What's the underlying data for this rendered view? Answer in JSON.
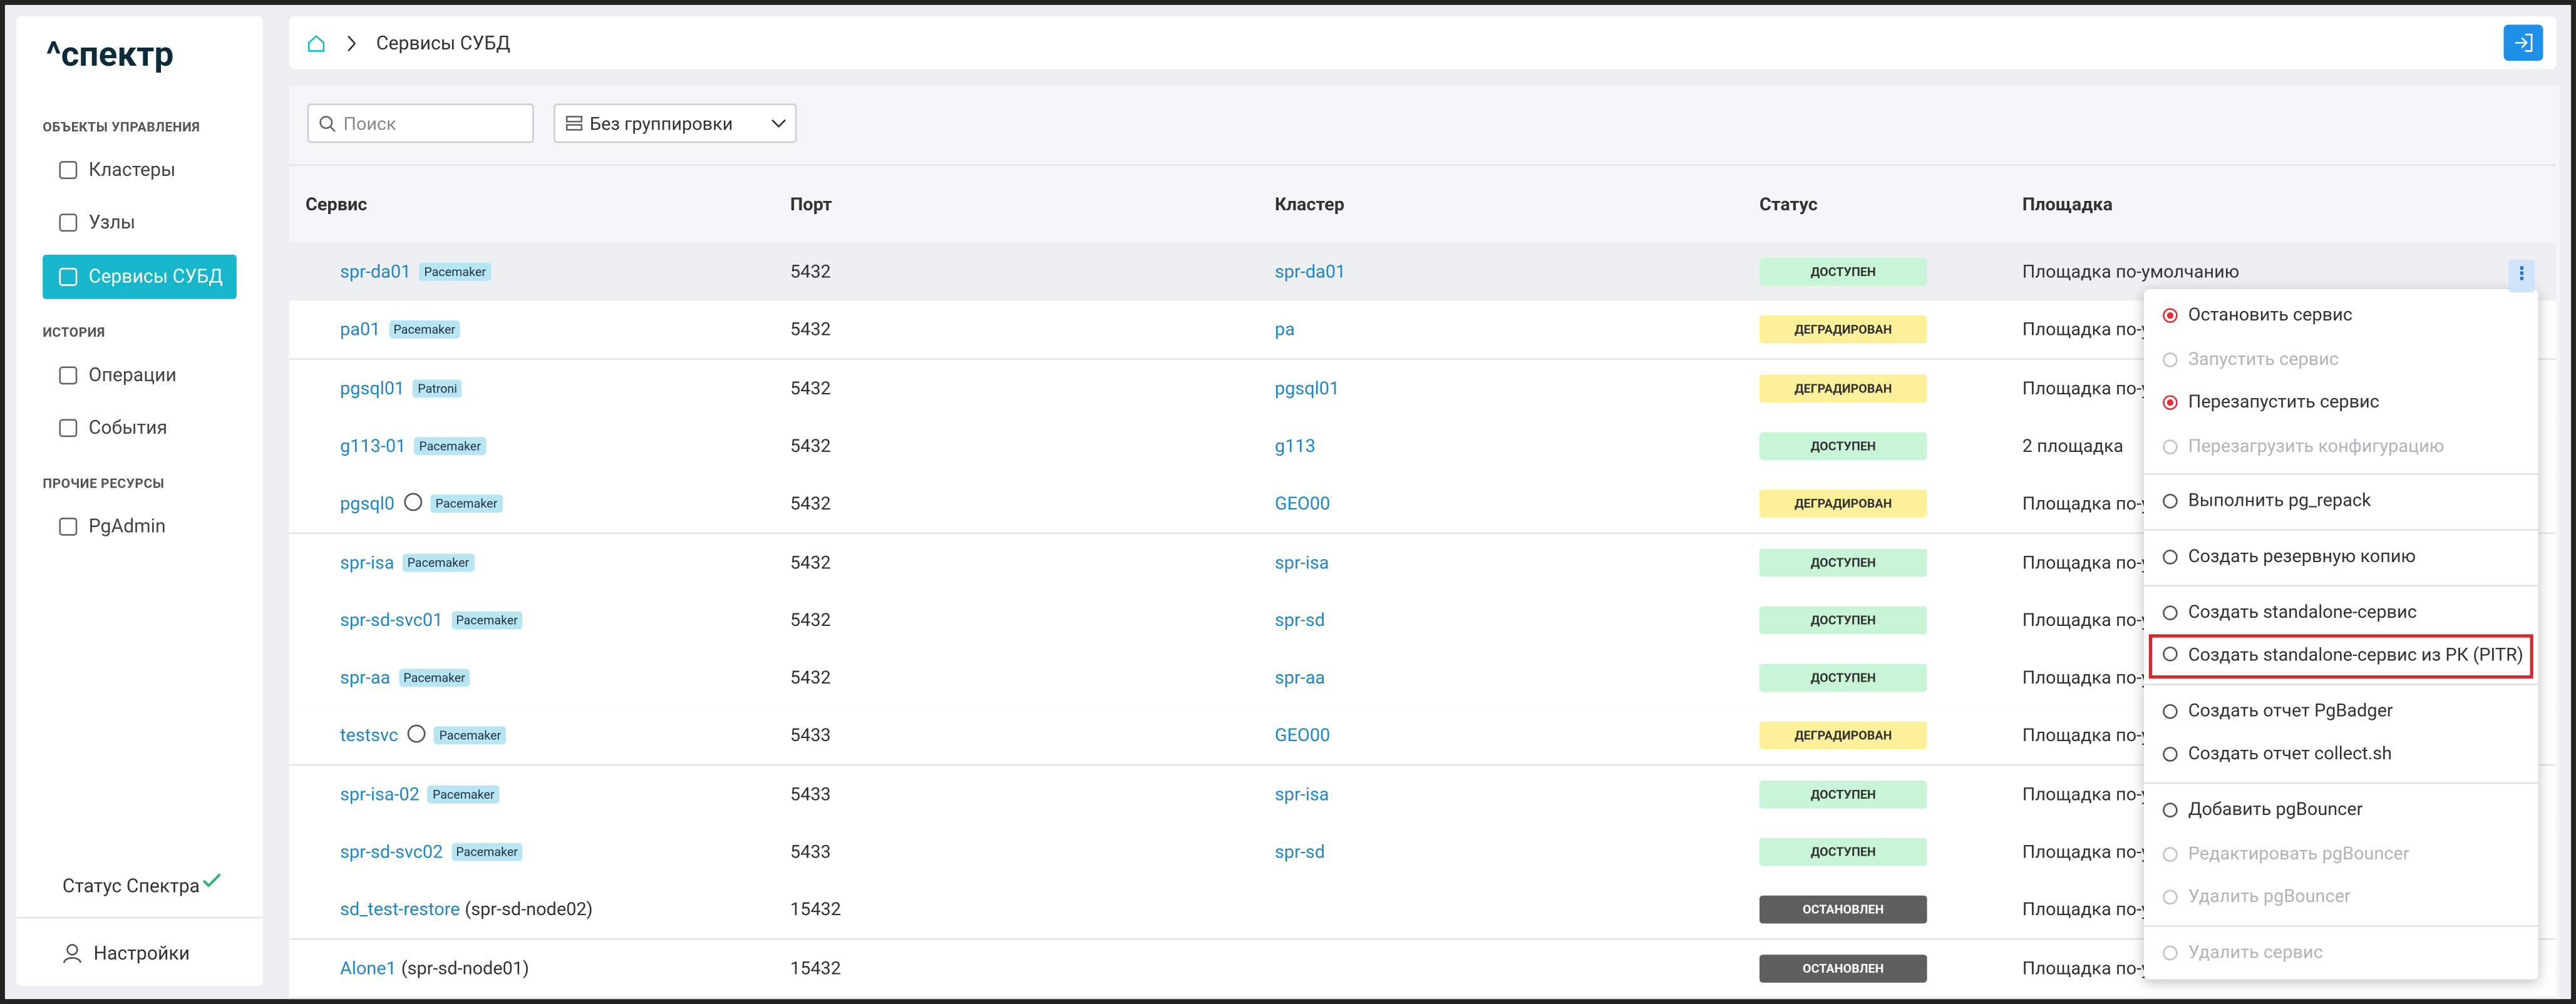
{
  "sidebar": {
    "logo": "^спектр",
    "sections": [
      {
        "title": "ОБЪЕКТЫ УПРАВЛЕНИЯ",
        "items": [
          "Кластеры",
          "Узлы",
          "Сервисы СУБД"
        ]
      },
      {
        "title": "ИСТОРИЯ",
        "items": [
          "Операции",
          "События"
        ]
      },
      {
        "title": "ПРОЧИЕ РЕСУРСЫ",
        "items": [
          "PgAdmin"
        ]
      }
    ],
    "status": "Статус Спектра",
    "settings": "Настройки"
  },
  "header": {
    "breadcrumb": "Сервисы СУБД"
  },
  "toolbar": {
    "search_placeholder": "Поиск",
    "grouping": "Без группировки"
  },
  "table": {
    "columns": [
      "Сервис",
      "Порт",
      "Кластер",
      "Статус",
      "Площадка"
    ],
    "rows": [
      {
        "name": "spr-da01",
        "tag": "Pacemaker",
        "port": "5432",
        "cluster": "spr-da01",
        "status": "ДОСТУПЕН",
        "status_color": "#c8f5d8",
        "site": "Площадка по-умолчанию"
      },
      {
        "name": "pa01",
        "tag": "Pacemaker",
        "port": "5432",
        "cluster": "pa",
        "status": "ДЕГРАДИРОВАН",
        "status_color": "#fdf09a",
        "site": "Площадка по-умолчанию"
      },
      {
        "name": "pgsql01",
        "tag": "Patroni",
        "port": "5432",
        "cluster": "pgsql01",
        "status": "ДЕГРАДИРОВАН",
        "status_color": "#fdf09a",
        "site": "Площадка по-умолчанию"
      },
      {
        "name": "g113-01",
        "tag": "Pacemaker",
        "port": "5432",
        "cluster": "g113",
        "status": "ДОСТУПЕН",
        "status_color": "#c8f5d8",
        "site": "2 площадка"
      },
      {
        "name": "pgsql0",
        "globe": true,
        "tag": "Pacemaker",
        "port": "5432",
        "cluster": "GEO00",
        "status": "ДЕГРАДИРОВАН",
        "status_color": "#fdf09a",
        "site": "Площадка по-умолчанию"
      },
      {
        "name": "spr-isa",
        "tag": "Pacemaker",
        "port": "5432",
        "cluster": "spr-isa",
        "status": "ДОСТУПЕН",
        "status_color": "#c8f5d8",
        "site": "Площадка по-умолчанию"
      },
      {
        "name": "spr-sd-svc01",
        "tag": "Pacemaker",
        "port": "5432",
        "cluster": "spr-sd",
        "status": "ДОСТУПЕН",
        "status_color": "#c8f5d8",
        "site": "Площадка по-умолчанию"
      },
      {
        "name": "spr-aa",
        "tag": "Pacemaker",
        "port": "5432",
        "cluster": "spr-aa",
        "status": "ДОСТУПЕН",
        "status_color": "#c8f5d8",
        "site": "Площадка по-умолчанию"
      },
      {
        "name": "testsvc",
        "globe": true,
        "tag": "Pacemaker",
        "port": "5433",
        "cluster": "GEO00",
        "status": "ДЕГРАДИРОВАН",
        "status_color": "#fdf09a",
        "site": "Площадка по-умолчанию"
      },
      {
        "name": "spr-isa-02",
        "tag": "Pacemaker",
        "port": "5433",
        "cluster": "spr-isa",
        "status": "ДОСТУПЕН",
        "status_color": "#c8f5d8",
        "site": "Площадка по-умолчанию"
      },
      {
        "name": "spr-sd-svc02",
        "tag": "Pacemaker",
        "port": "5433",
        "cluster": "spr-sd",
        "status": "ДОСТУПЕН",
        "status_color": "#c8f5d8",
        "site": "Площадка по-умолчанию"
      },
      {
        "name": "sd_test-restore",
        "host": "(spr-sd-node02)",
        "port": "15432",
        "status": "ОСТАНОВЛЕН",
        "status_color": "#5f5f5f",
        "site": "Площадка по-умолчанию"
      },
      {
        "name": "Alone1",
        "host": "(spr-sd-node01)",
        "port": "15432",
        "status": "ОСТАНОВЛЕН",
        "status_color": "#5f5f5f",
        "site": "Площадка по-умолчанию"
      }
    ]
  },
  "menu": {
    "groups": [
      [
        {
          "label": "Остановить сервис",
          "color": "#e0323c"
        },
        {
          "label": "Запустить сервис",
          "disabled": true
        },
        {
          "label": "Перезапустить сервис",
          "color": "#e0323c"
        },
        {
          "label": "Перезагрузить конфигурацию",
          "disabled": true
        }
      ],
      [
        {
          "label": "Выполнить pg_repack"
        }
      ],
      [
        {
          "label": "Создать резервную копию"
        }
      ],
      [
        {
          "label": "Создать standalone-сервис"
        },
        {
          "label": "Создать standalone-сервис из РК (PITR)",
          "highlighted": true
        }
      ],
      [
        {
          "label": "Создать отчет PgBadger"
        },
        {
          "label": "Создать отчет collect.sh"
        }
      ],
      [
        {
          "label": "Добавить pgBouncer"
        },
        {
          "label": "Редактировать pgBouncer",
          "disabled": true
        },
        {
          "label": "Удалить pgBouncer",
          "disabled": true
        }
      ],
      [
        {
          "label": "Удалить сервис",
          "disabled": true
        }
      ]
    ]
  }
}
